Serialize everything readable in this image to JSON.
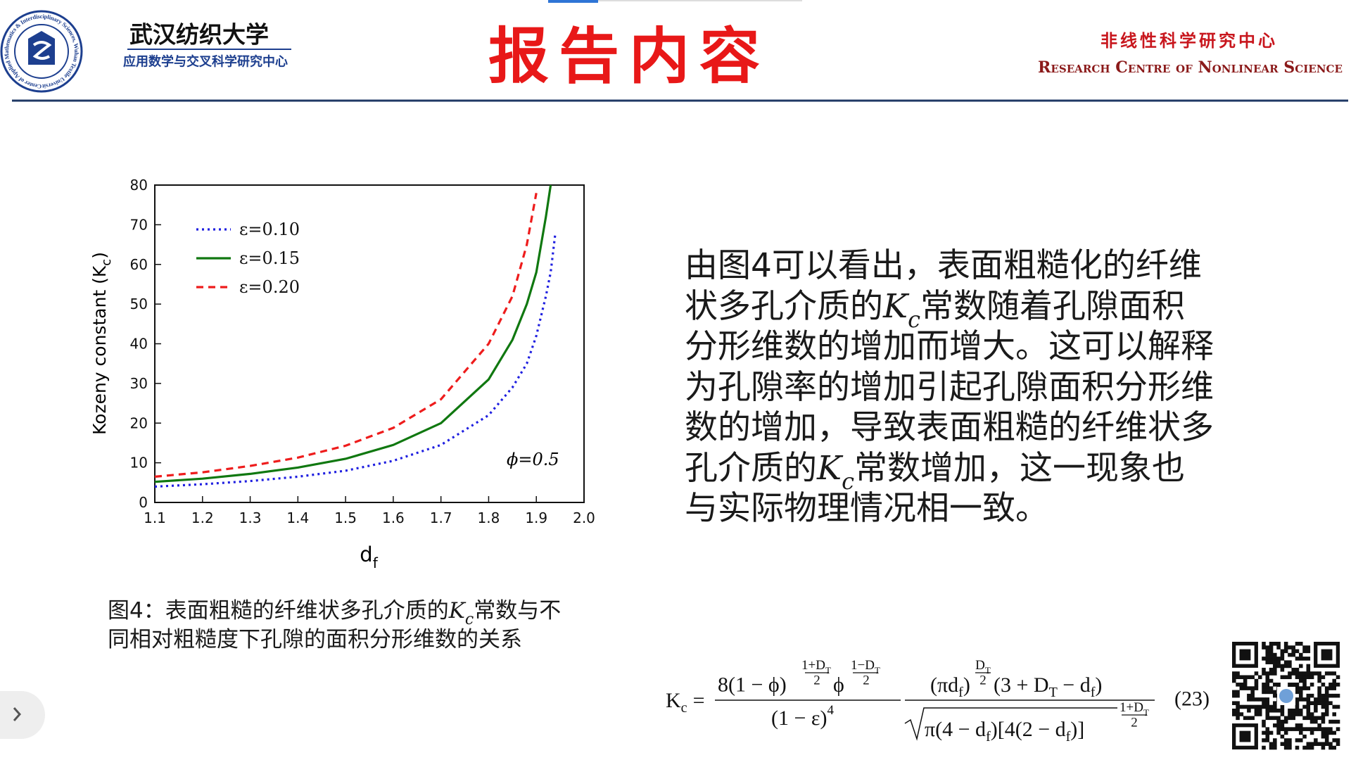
{
  "header": {
    "logo_text": "Center of Applied Mathematics & Interdisciplinary Sciences, Wuhan Textile University, China",
    "university": "武汉纺织大学",
    "center": "应用数学与交叉科学研究中心",
    "title": "报告内容",
    "right_title": "非线性科学研究中心",
    "right_subtitle": "Research Centre of Nonlinear Science"
  },
  "chart_data": {
    "type": "line",
    "x": [
      1.1,
      1.2,
      1.3,
      1.4,
      1.5,
      1.6,
      1.7,
      1.8,
      1.85,
      1.88,
      1.9,
      1.92,
      1.93,
      1.94
    ],
    "series": [
      {
        "name": "ε=0.10",
        "color": "#1f1fe0",
        "line_style": "dotted",
        "values": [
          4,
          4.6,
          5.4,
          6.5,
          8,
          10.5,
          14.5,
          22,
          29,
          35,
          42,
          52,
          58,
          68
        ]
      },
      {
        "name": "ε=0.15",
        "color": "#107810",
        "line_style": "solid",
        "values": [
          5.2,
          6,
          7.2,
          8.8,
          11,
          14.5,
          20,
          31,
          41,
          50,
          58,
          72,
          80,
          null
        ]
      },
      {
        "name": "ε=0.20",
        "color": "#ee1c1c",
        "line_style": "dashed",
        "values": [
          6.5,
          7.6,
          9.2,
          11.3,
          14.3,
          18.8,
          26,
          40,
          52,
          65,
          78,
          null,
          null,
          null
        ]
      }
    ],
    "xlim": [
      1.1,
      2.0
    ],
    "ylim": [
      0,
      80
    ],
    "xticks": [
      1.1,
      1.2,
      1.3,
      1.4,
      1.5,
      1.6,
      1.7,
      1.8,
      1.9,
      {
        "value": 2,
        "label": "2.0"
      }
    ],
    "yticks": [
      0,
      10,
      20,
      30,
      40,
      50,
      60,
      70,
      80
    ],
    "xlabel": [
      "d",
      "f"
    ],
    "ylabel": [
      "Kozeny constant (K",
      "c",
      ")"
    ],
    "annotation": "ϕ=0.5",
    "legend": "upper left",
    "grid": false
  },
  "paragraph": [
    [
      "由图4可以看出，表面粗糙化的纤维"
    ],
    [
      "状多孔介质的",
      "K",
      "c",
      "常数随着孔隙面积"
    ],
    [
      "分形维数的增加而增大。这可以解释"
    ],
    [
      "为孔隙率的增加引起孔隙面积分形维"
    ],
    [
      "数的增加，导致表面粗糙的纤维状多"
    ],
    [
      "孔介质的",
      "K",
      "c",
      "常数增加，这一现象也"
    ],
    [
      "与实际物理情况相一致。"
    ]
  ],
  "caption": [
    [
      "图4：表面粗糙的纤维状多孔介质的",
      "K",
      "c",
      "常数与不"
    ],
    [
      "同相对粗糙度下孔隙的面积分形维数的关系"
    ]
  ],
  "formula": {
    "lhs": [
      "K",
      "c",
      "="
    ],
    "n1": [
      "8(1 − ϕ)",
      "1+D",
      "T",
      "2",
      "ϕ",
      "1−D",
      "T",
      "2"
    ],
    "d1": [
      "(1 − ε)",
      "4"
    ],
    "n2": [
      "(πd",
      "f",
      ")",
      "D",
      "T",
      "2",
      "(3 + D",
      "T",
      " − d",
      "f",
      ")"
    ],
    "d2": [
      "π(4 − d",
      "f",
      ")[4(2 − d",
      "f",
      ")]",
      "1+D",
      "T",
      "2"
    ],
    "number": "(23)"
  }
}
